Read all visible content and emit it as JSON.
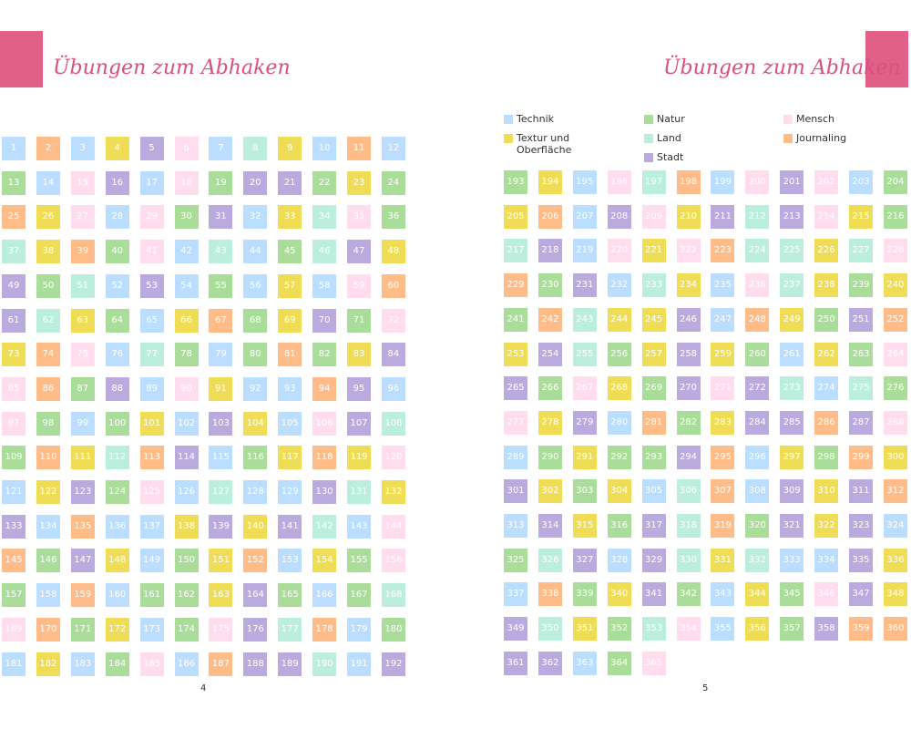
{
  "left_page": {
    "title": "Übungen zum Abhaken",
    "page_number": 4,
    "numbers": [
      1,
      2,
      3,
      4,
      5,
      6,
      7,
      8,
      9,
      10,
      11,
      12,
      13,
      14,
      15,
      16,
      17,
      18,
      19,
      20,
      21,
      22,
      23,
      24,
      25,
      26,
      27,
      28,
      29,
      30,
      31,
      32,
      33,
      34,
      35,
      36,
      37,
      38,
      39,
      40,
      41,
      42,
      43,
      44,
      45,
      46,
      47,
      48,
      49,
      50,
      51,
      52,
      53,
      54,
      55,
      56,
      57,
      58,
      59,
      60,
      61,
      62,
      63,
      64,
      65,
      66,
      67,
      68,
      69,
      70,
      71,
      72,
      73,
      74,
      75,
      76,
      77,
      78,
      79,
      80,
      81,
      82,
      83,
      84,
      85,
      86,
      87,
      88,
      89,
      90,
      91,
      92,
      93,
      94,
      95,
      96,
      97,
      98,
      99,
      100,
      101,
      102,
      103,
      104,
      105,
      106,
      107,
      108,
      109,
      110,
      111,
      112,
      113,
      114,
      115,
      116,
      117,
      118,
      119,
      120,
      121,
      122,
      123,
      124,
      125,
      126,
      127,
      128,
      129,
      130,
      131,
      132,
      133,
      134,
      135,
      136,
      137,
      138,
      139,
      140,
      141,
      142,
      143,
      144,
      145,
      146,
      147,
      148,
      149,
      150,
      151,
      152,
      153,
      154,
      155,
      156,
      157,
      158,
      159,
      160,
      161,
      162,
      163,
      164,
      165,
      166,
      167,
      168,
      169,
      170,
      171,
      172,
      173,
      174,
      175,
      176,
      177,
      178,
      179,
      180,
      181,
      182,
      183,
      184,
      185,
      186,
      187,
      188,
      189,
      190,
      191,
      192
    ],
    "colors": [
      "#bdf",
      "#fb8",
      "#bdf",
      "#ed5",
      "#bad",
      "#fde",
      "#bdf",
      "#bed",
      "#ed5",
      "#bdf",
      "#fb8",
      "#bdf",
      "#ad9",
      "#bdf",
      "#fde",
      "#bad",
      "#bdf",
      "#fde",
      "#ad9",
      "#bad",
      "#bad",
      "#ad9",
      "#ed5",
      "#ad9",
      "#fb8",
      "#ed5",
      "#fde",
      "#bdf",
      "#fde",
      "#ad9",
      "#bad",
      "#bdf",
      "#ed5",
      "#bed",
      "#fde",
      "#ad9",
      "#bed",
      "#ed5",
      "#fb8",
      "#ad9",
      "#fde",
      "#bdf",
      "#bed",
      "#bdf",
      "#ad9",
      "#bed",
      "#bad",
      "#ed5",
      "#bad",
      "#ad9",
      "#bed",
      "#bdf",
      "#bad",
      "#bdf",
      "#ad9",
      "#bdf",
      "#ed5",
      "#bdf",
      "#fde",
      "#fb8",
      "#bad",
      "#bed",
      "#ed5",
      "#ad9",
      "#bdf",
      "#ed5",
      "#fb8",
      "#ad9",
      "#ed5",
      "#bad",
      "#ad9",
      "#fde",
      "#ed5",
      "#fb8",
      "#fde",
      "#bdf",
      "#bed",
      "#ad9",
      "#bdf",
      "#ad9",
      "#fb8",
      "#ad9",
      "#ed5",
      "#bad",
      "#fde",
      "#fb8",
      "#ad9",
      "#bad",
      "#bdf",
      "#fde",
      "#ed5",
      "#bdf",
      "#bdf",
      "#fb8",
      "#bad",
      "#bdf",
      "#fde",
      "#ad9",
      "#bdf",
      "#ad9",
      "#ed5",
      "#bdf",
      "#bad",
      "#ed5",
      "#bdf",
      "#fde",
      "#bad",
      "#bed",
      "#ad9",
      "#fb8",
      "#ed5",
      "#bed",
      "#fb8",
      "#bad",
      "#bdf",
      "#ad9",
      "#ed5",
      "#fb8",
      "#ed5",
      "#fde",
      "#bdf",
      "#ed5",
      "#bad",
      "#ad9",
      "#fde",
      "#bdf",
      "#bed",
      "#bdf",
      "#bdf",
      "#bad",
      "#bed",
      "#ed5",
      "#bad",
      "#bdf",
      "#fb8",
      "#bdf",
      "#bdf",
      "#ed5",
      "#bad",
      "#ed5",
      "#bad",
      "#bed",
      "#bdf",
      "#fde",
      "#fb8",
      "#ad9",
      "#bad",
      "#ed5",
      "#bdf",
      "#ad9",
      "#ed5",
      "#fb8",
      "#bdf",
      "#ed5",
      "#ad9",
      "#fde",
      "#ad9",
      "#bdf",
      "#fb8",
      "#bdf",
      "#ad9",
      "#ad9",
      "#ed5",
      "#bad",
      "#ad9",
      "#bdf",
      "#ad9",
      "#bed",
      "#fde",
      "#fb8",
      "#ad9",
      "#ed5",
      "#bdf",
      "#ad9",
      "#fde",
      "#bad",
      "#bed",
      "#fb8",
      "#bdf",
      "#ad9",
      "#bdf",
      "#ed5",
      "#bdf",
      "#ad9",
      "#fde",
      "#bdf",
      "#fb8",
      "#bad",
      "#bad",
      "#bed",
      "#bdf",
      "#bad"
    ]
  },
  "right_page": {
    "title": "Übungen zum Abhaken",
    "page_number": 5,
    "legend": [
      {
        "label": "Technik",
        "color": "#bdf"
      },
      {
        "label": "Textur und Oberfläche",
        "color": "#ed5"
      },
      {
        "label": "Natur",
        "color": "#ad9"
      },
      {
        "label": "Land",
        "color": "#bed"
      },
      {
        "label": "Stadt",
        "color": "#bad"
      },
      {
        "label": "Mensch",
        "color": "#fde"
      },
      {
        "label": "Journaling",
        "color": "#fb8"
      }
    ],
    "numbers": [
      193,
      194,
      195,
      196,
      197,
      198,
      199,
      200,
      201,
      202,
      203,
      204,
      205,
      206,
      207,
      208,
      209,
      210,
      211,
      212,
      213,
      214,
      215,
      216,
      217,
      218,
      219,
      220,
      221,
      222,
      223,
      224,
      225,
      226,
      227,
      228,
      229,
      230,
      231,
      232,
      233,
      234,
      235,
      236,
      237,
      238,
      239,
      240,
      241,
      242,
      243,
      244,
      245,
      246,
      247,
      248,
      249,
      250,
      251,
      252,
      253,
      254,
      255,
      256,
      257,
      258,
      259,
      260,
      261,
      262,
      263,
      264,
      265,
      266,
      267,
      268,
      269,
      270,
      271,
      272,
      273,
      274,
      275,
      276,
      277,
      278,
      279,
      280,
      281,
      282,
      283,
      284,
      285,
      286,
      287,
      288,
      289,
      290,
      291,
      292,
      293,
      294,
      295,
      296,
      297,
      298,
      299,
      300,
      301,
      302,
      303,
      304,
      305,
      306,
      307,
      308,
      309,
      310,
      311,
      312,
      313,
      314,
      315,
      316,
      317,
      318,
      319,
      320,
      321,
      322,
      323,
      324,
      325,
      326,
      327,
      328,
      329,
      330,
      331,
      332,
      333,
      334,
      335,
      336,
      337,
      338,
      339,
      340,
      341,
      342,
      343,
      344,
      345,
      346,
      347,
      348,
      349,
      350,
      351,
      352,
      353,
      354,
      355,
      356,
      357,
      358,
      359,
      360,
      361,
      362,
      363,
      364,
      365
    ],
    "colors": [
      "#ad9",
      "#ed5",
      "#bdf",
      "#fde",
      "#bed",
      "#fb8",
      "#bdf",
      "#fde",
      "#bad",
      "#fde",
      "#bdf",
      "#ad9",
      "#ed5",
      "#fb8",
      "#bdf",
      "#bad",
      "#fde",
      "#ed5",
      "#bad",
      "#bed",
      "#bad",
      "#fde",
      "#ed5",
      "#ad9",
      "#bed",
      "#bad",
      "#bdf",
      "#fde",
      "#ed5",
      "#fde",
      "#fb8",
      "#bed",
      "#bed",
      "#ed5",
      "#bed",
      "#fde",
      "#fb8",
      "#ad9",
      "#bad",
      "#bdf",
      "#bed",
      "#ed5",
      "#bdf",
      "#fde",
      "#bed",
      "#ed5",
      "#ad9",
      "#ed5",
      "#ad9",
      "#fb8",
      "#bed",
      "#ed5",
      "#ed5",
      "#bad",
      "#bdf",
      "#fb8",
      "#ed5",
      "#ad9",
      "#bad",
      "#fb8",
      "#ed5",
      "#bad",
      "#bed",
      "#ad9",
      "#ed5",
      "#bad",
      "#ed5",
      "#ad9",
      "#bdf",
      "#ed5",
      "#ad9",
      "#fde",
      "#bad",
      "#ad9",
      "#fde",
      "#ed5",
      "#ad9",
      "#bad",
      "#fde",
      "#bad",
      "#bed",
      "#bdf",
      "#bed",
      "#ad9",
      "#fde",
      "#ed5",
      "#bad",
      "#bdf",
      "#fb8",
      "#ad9",
      "#ed5",
      "#bad",
      "#bad",
      "#fb8",
      "#bad",
      "#fde",
      "#bdf",
      "#ad9",
      "#ed5",
      "#ad9",
      "#ad9",
      "#bad",
      "#fb8",
      "#bdf",
      "#ed5",
      "#ad9",
      "#fb8",
      "#ed5",
      "#bad",
      "#ed5",
      "#ad9",
      "#ed5",
      "#bdf",
      "#bed",
      "#fb8",
      "#bdf",
      "#bad",
      "#ed5",
      "#bad",
      "#fb8",
      "#bdf",
      "#bad",
      "#ed5",
      "#ad9",
      "#bad",
      "#bed",
      "#fb8",
      "#ad9",
      "#bad",
      "#ed5",
      "#bad",
      "#bdf",
      "#ad9",
      "#bed",
      "#bad",
      "#bdf",
      "#bad",
      "#bed",
      "#ed5",
      "#bed",
      "#bdf",
      "#bdf",
      "#bad",
      "#ed5",
      "#bdf",
      "#fb8",
      "#ad9",
      "#ed5",
      "#bad",
      "#ad9",
      "#bdf",
      "#ed5",
      "#ad9",
      "#fde",
      "#bad",
      "#ed5",
      "#bad",
      "#bed",
      "#ed5",
      "#ad9",
      "#bed",
      "#fde",
      "#bdf",
      "#ed5",
      "#ad9",
      "#bad",
      "#fb8",
      "#fb8",
      "#bad",
      "#bad",
      "#bdf",
      "#ad9",
      "#fde"
    ]
  }
}
